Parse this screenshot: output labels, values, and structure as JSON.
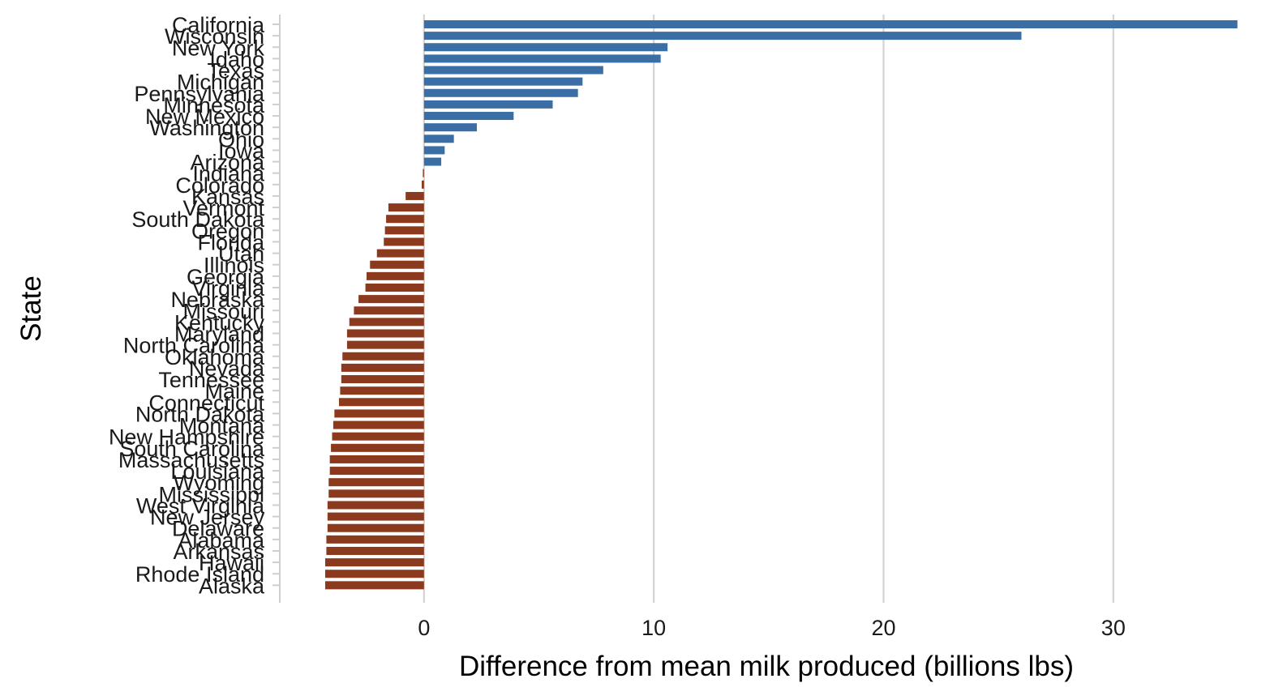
{
  "chart_data": {
    "type": "bar",
    "orientation": "horizontal",
    "xlabel": "Difference from mean milk produced (billions lbs)",
    "ylabel": "State",
    "xlim": [
      -6.1,
      35.9
    ],
    "x_ticks": [
      0,
      10,
      20,
      30
    ],
    "grid": "vertical major gridlines",
    "colors": {
      "positive": "#3a6ea5",
      "negative": "#8b3a1e",
      "grid": "#d3d3d3"
    },
    "categories": [
      "California",
      "Wisconsin",
      "New York",
      "Idaho",
      "Texas",
      "Michigan",
      "Pennsylvania",
      "Minnesota",
      "New Mexico",
      "Washington",
      "Ohio",
      "Iowa",
      "Arizona",
      "Indiana",
      "Colorado",
      "Kansas",
      "Vermont",
      "South Dakota",
      "Oregon",
      "Florida",
      "Utah",
      "Illinois",
      "Georgia",
      "Virginia",
      "Nebraska",
      "Missouri",
      "Kentucky",
      "Maryland",
      "North Carolina",
      "Oklahoma",
      "Nevada",
      "Tennessee",
      "Maine",
      "Connecticut",
      "North Dakota",
      "Montana",
      "New Hampshire",
      "South Carolina",
      "Massachusetts",
      "Louisiana",
      "Wyoming",
      "Mississippi",
      "West Virginia",
      "New Jersey",
      "Delaware",
      "Alabama",
      "Arkansas",
      "Hawaii",
      "Rhode Island",
      "Alaska"
    ],
    "values": [
      35.4,
      26.0,
      10.6,
      10.3,
      7.8,
      6.9,
      6.7,
      5.6,
      3.9,
      2.3,
      1.3,
      0.9,
      0.75,
      -0.05,
      -0.1,
      -0.8,
      -1.55,
      -1.65,
      -1.7,
      -1.75,
      -2.05,
      -2.35,
      -2.5,
      -2.55,
      -2.85,
      -3.05,
      -3.25,
      -3.35,
      -3.35,
      -3.55,
      -3.6,
      -3.6,
      -3.65,
      -3.7,
      -3.9,
      -3.95,
      -4.0,
      -4.05,
      -4.1,
      -4.1,
      -4.15,
      -4.15,
      -4.2,
      -4.2,
      -4.2,
      -4.25,
      -4.25,
      -4.3,
      -4.3,
      -4.3
    ]
  }
}
